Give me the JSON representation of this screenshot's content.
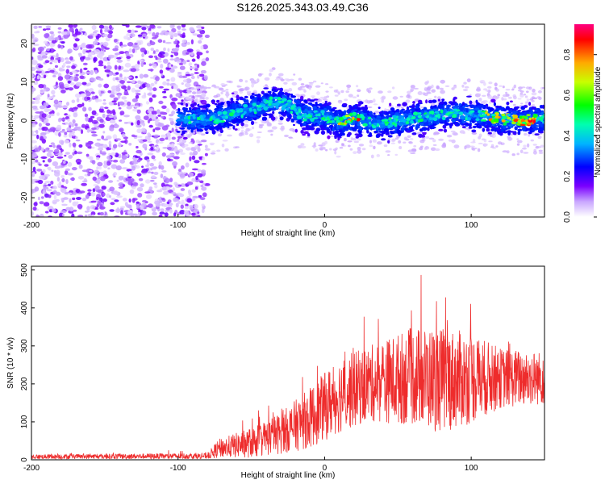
{
  "title": "S126.2025.343.03.49.C36",
  "chart_data": [
    {
      "type": "heatmap",
      "xlabel": "Height of straight line (km)",
      "ylabel": "Frequency (Hz)",
      "xlim": [
        -200,
        150
      ],
      "ylim": [
        -25,
        25
      ],
      "xticks": [
        -200,
        -100,
        0,
        100
      ],
      "yticks": [
        -20,
        -10,
        0,
        10,
        20
      ],
      "colorbar": {
        "label": "Normalized spectral amplitude",
        "range": [
          0,
          0.95
        ],
        "ticks": [
          0.0,
          0.2,
          0.4,
          0.6,
          0.8
        ]
      },
      "noise_region": {
        "from_km": -200,
        "to_km": -80
      },
      "ridge": [
        {
          "x": -100,
          "freq": 0.5
        },
        {
          "x": -80,
          "freq": 0
        },
        {
          "x": -60,
          "freq": 2
        },
        {
          "x": -45,
          "freq": 3.5
        },
        {
          "x": -35,
          "freq": 5
        },
        {
          "x": -25,
          "freq": 4
        },
        {
          "x": -15,
          "freq": 1.5
        },
        {
          "x": 0,
          "freq": 1
        },
        {
          "x": 10,
          "freq": -0.5
        },
        {
          "x": 20,
          "freq": 0.5
        },
        {
          "x": 35,
          "freq": -1
        },
        {
          "x": 50,
          "freq": 0
        },
        {
          "x": 70,
          "freq": 1
        },
        {
          "x": 90,
          "freq": 2
        },
        {
          "x": 110,
          "freq": 1
        },
        {
          "x": 130,
          "freq": 0
        },
        {
          "x": 150,
          "freq": 0.5
        }
      ]
    },
    {
      "type": "line",
      "xlabel": "Height of straight line (km)",
      "ylabel": "SNR (10 * v/v)",
      "xlim": [
        -200,
        150
      ],
      "ylim": [
        0,
        510
      ],
      "xticks": [
        -200,
        -100,
        0,
        100
      ],
      "yticks": [
        0,
        100,
        200,
        300,
        400,
        500
      ],
      "series_color": "#ee2c2c",
      "envelope": [
        {
          "x": -200,
          "mean": 8,
          "amp": 6
        },
        {
          "x": -80,
          "mean": 10,
          "amp": 8
        },
        {
          "x": -72,
          "mean": 30,
          "amp": 25
        },
        {
          "x": -50,
          "mean": 45,
          "amp": 40
        },
        {
          "x": -30,
          "mean": 70,
          "amp": 55
        },
        {
          "x": -10,
          "mean": 110,
          "amp": 80
        },
        {
          "x": 10,
          "mean": 170,
          "amp": 100
        },
        {
          "x": 30,
          "mean": 200,
          "amp": 100
        },
        {
          "x": 60,
          "mean": 220,
          "amp": 130
        },
        {
          "x": 80,
          "mean": 210,
          "amp": 140
        },
        {
          "x": 100,
          "mean": 215,
          "amp": 120
        },
        {
          "x": 120,
          "mean": 215,
          "amp": 80
        },
        {
          "x": 150,
          "mean": 215,
          "amp": 70
        }
      ]
    }
  ]
}
